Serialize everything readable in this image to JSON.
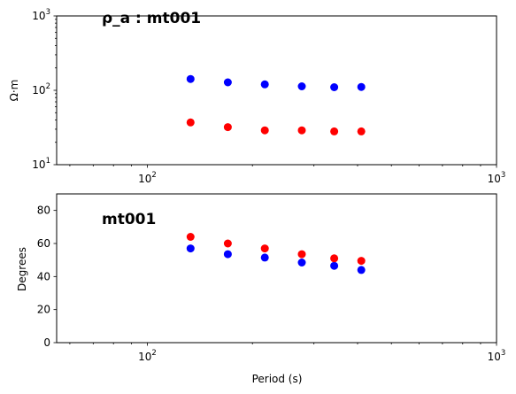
{
  "chart_data": [
    {
      "type": "scatter",
      "title": "ρ_a : mt001",
      "xlabel": "",
      "ylabel": "Ω·m",
      "xscale": "log",
      "yscale": "log",
      "xlim": [
        55,
        1000
      ],
      "ylim": [
        10,
        1000
      ],
      "xticks": [
        {
          "value": 100,
          "base": "10",
          "exp": "2"
        },
        {
          "value": 1000,
          "base": "10",
          "exp": "3"
        }
      ],
      "yticks": [
        {
          "value": 10,
          "base": "10",
          "exp": "1"
        },
        {
          "value": 100,
          "base": "10",
          "exp": "2"
        },
        {
          "value": 1000,
          "base": "10",
          "exp": "3"
        }
      ],
      "grid": false,
      "series": [
        {
          "color": "#0000ff",
          "x": [
            133,
            170,
            217,
            277,
            343,
            410
          ],
          "y": [
            142,
            128,
            120,
            113,
            110,
            111
          ]
        },
        {
          "color": "#ff0000",
          "x": [
            133,
            170,
            217,
            277,
            343,
            410
          ],
          "y": [
            37,
            32,
            29,
            29,
            28,
            28
          ]
        }
      ]
    },
    {
      "type": "scatter",
      "title": "mt001",
      "xlabel": "Period (s)",
      "ylabel": "Degrees",
      "xscale": "log",
      "yscale": "linear",
      "xlim": [
        55,
        1000
      ],
      "ylim": [
        0,
        90
      ],
      "xticks": [
        {
          "value": 100,
          "base": "10",
          "exp": "2"
        },
        {
          "value": 1000,
          "base": "10",
          "exp": "3"
        }
      ],
      "yticks": [
        {
          "value": 0,
          "label": "0"
        },
        {
          "value": 20,
          "label": "20"
        },
        {
          "value": 40,
          "label": "40"
        },
        {
          "value": 60,
          "label": "60"
        },
        {
          "value": 80,
          "label": "80"
        }
      ],
      "grid": false,
      "series": [
        {
          "color": "#0000ff",
          "x": [
            133,
            170,
            217,
            277,
            343,
            410
          ],
          "y": [
            57,
            53.5,
            51.5,
            48.5,
            46.5,
            44
          ]
        },
        {
          "color": "#ff0000",
          "x": [
            133,
            170,
            217,
            277,
            343,
            410
          ],
          "y": [
            64,
            60,
            57,
            53.5,
            51,
            49.5
          ]
        }
      ]
    }
  ]
}
